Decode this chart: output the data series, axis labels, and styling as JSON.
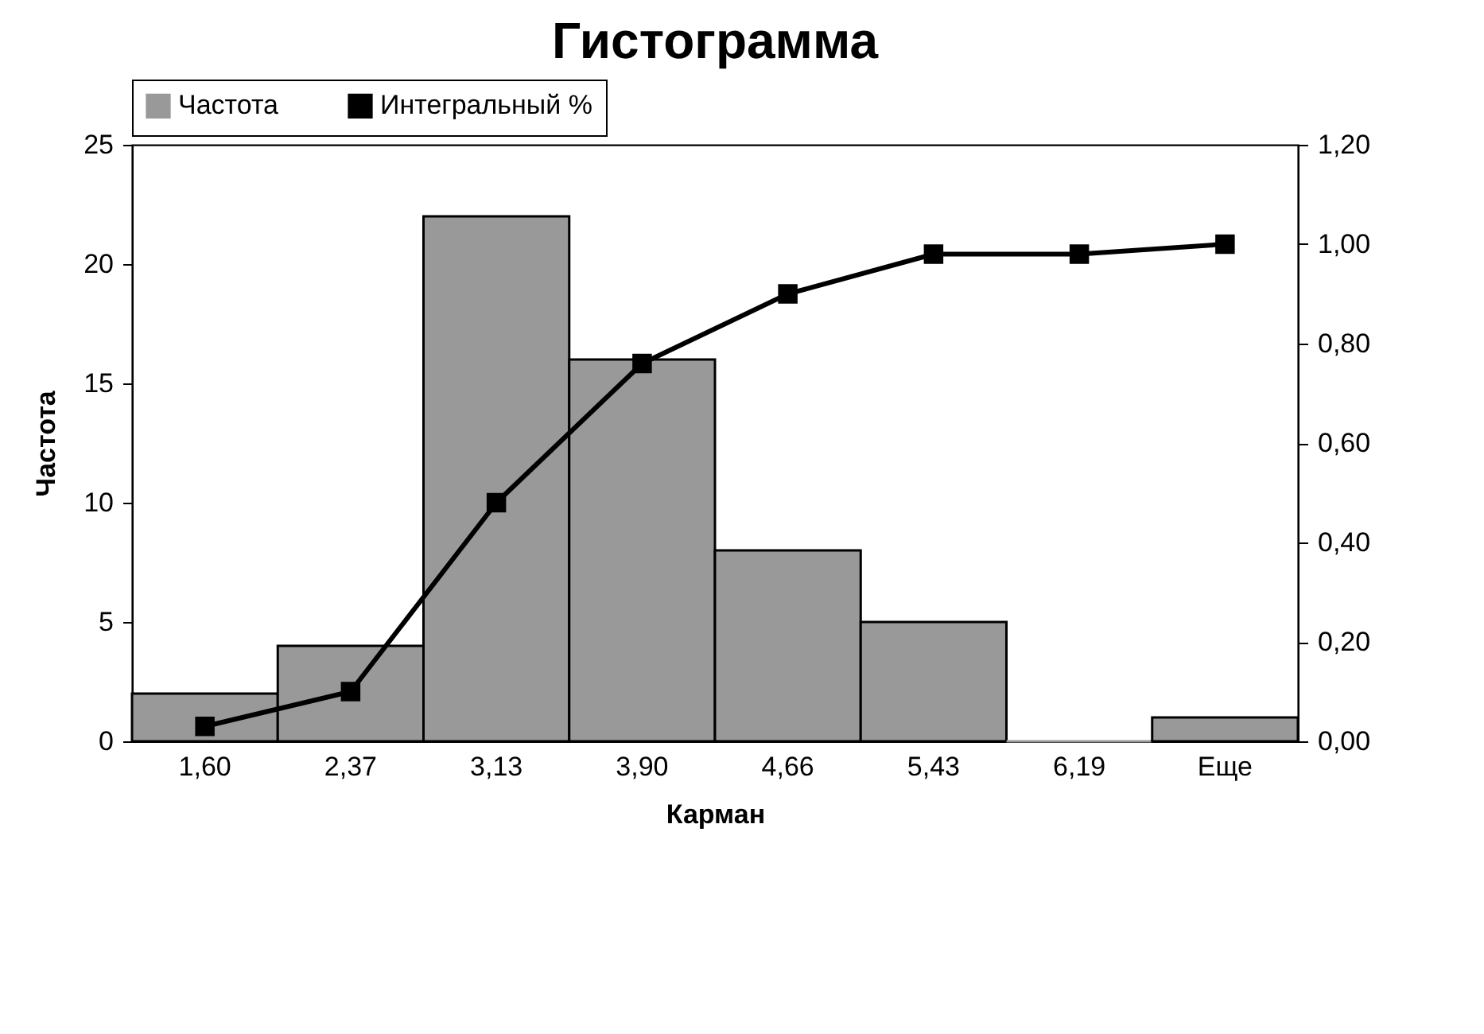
{
  "chart_data": {
    "type": "bar",
    "title": "Гистограмма",
    "xlabel": "Карман",
    "ylabel": "Частота",
    "categories": [
      "1,60",
      "2,37",
      "3,13",
      "3,90",
      "4,66",
      "5,43",
      "6,19",
      "Еще"
    ],
    "series": [
      {
        "name": "Частота",
        "color": "#999999",
        "values": [
          2,
          4,
          22,
          16,
          8,
          5,
          0,
          1
        ]
      },
      {
        "name": "Интегральный %",
        "type": "line",
        "axis": "y2",
        "color": "#000000",
        "values": [
          0.03,
          0.1,
          0.48,
          0.76,
          0.9,
          0.98,
          0.98,
          1.0
        ]
      }
    ],
    "ylim": [
      0,
      25
    ],
    "yticks": [
      0,
      5,
      10,
      15,
      20,
      25
    ],
    "y2lim": [
      0,
      1.2
    ],
    "y2ticks": [
      {
        "value": 0,
        "label": "0,00"
      },
      {
        "value": 0.2,
        "label": "0,20"
      },
      {
        "value": 0.4,
        "label": "0,40"
      },
      {
        "value": 0.6,
        "label": "0,60"
      },
      {
        "value": 0.8,
        "label": "0,80"
      },
      {
        "value": 1,
        "label": "1,00"
      },
      {
        "value": 1.2,
        "label": "1,20"
      }
    ],
    "legend": "top",
    "marker": "square",
    "line_style": "solid",
    "grid": false
  }
}
